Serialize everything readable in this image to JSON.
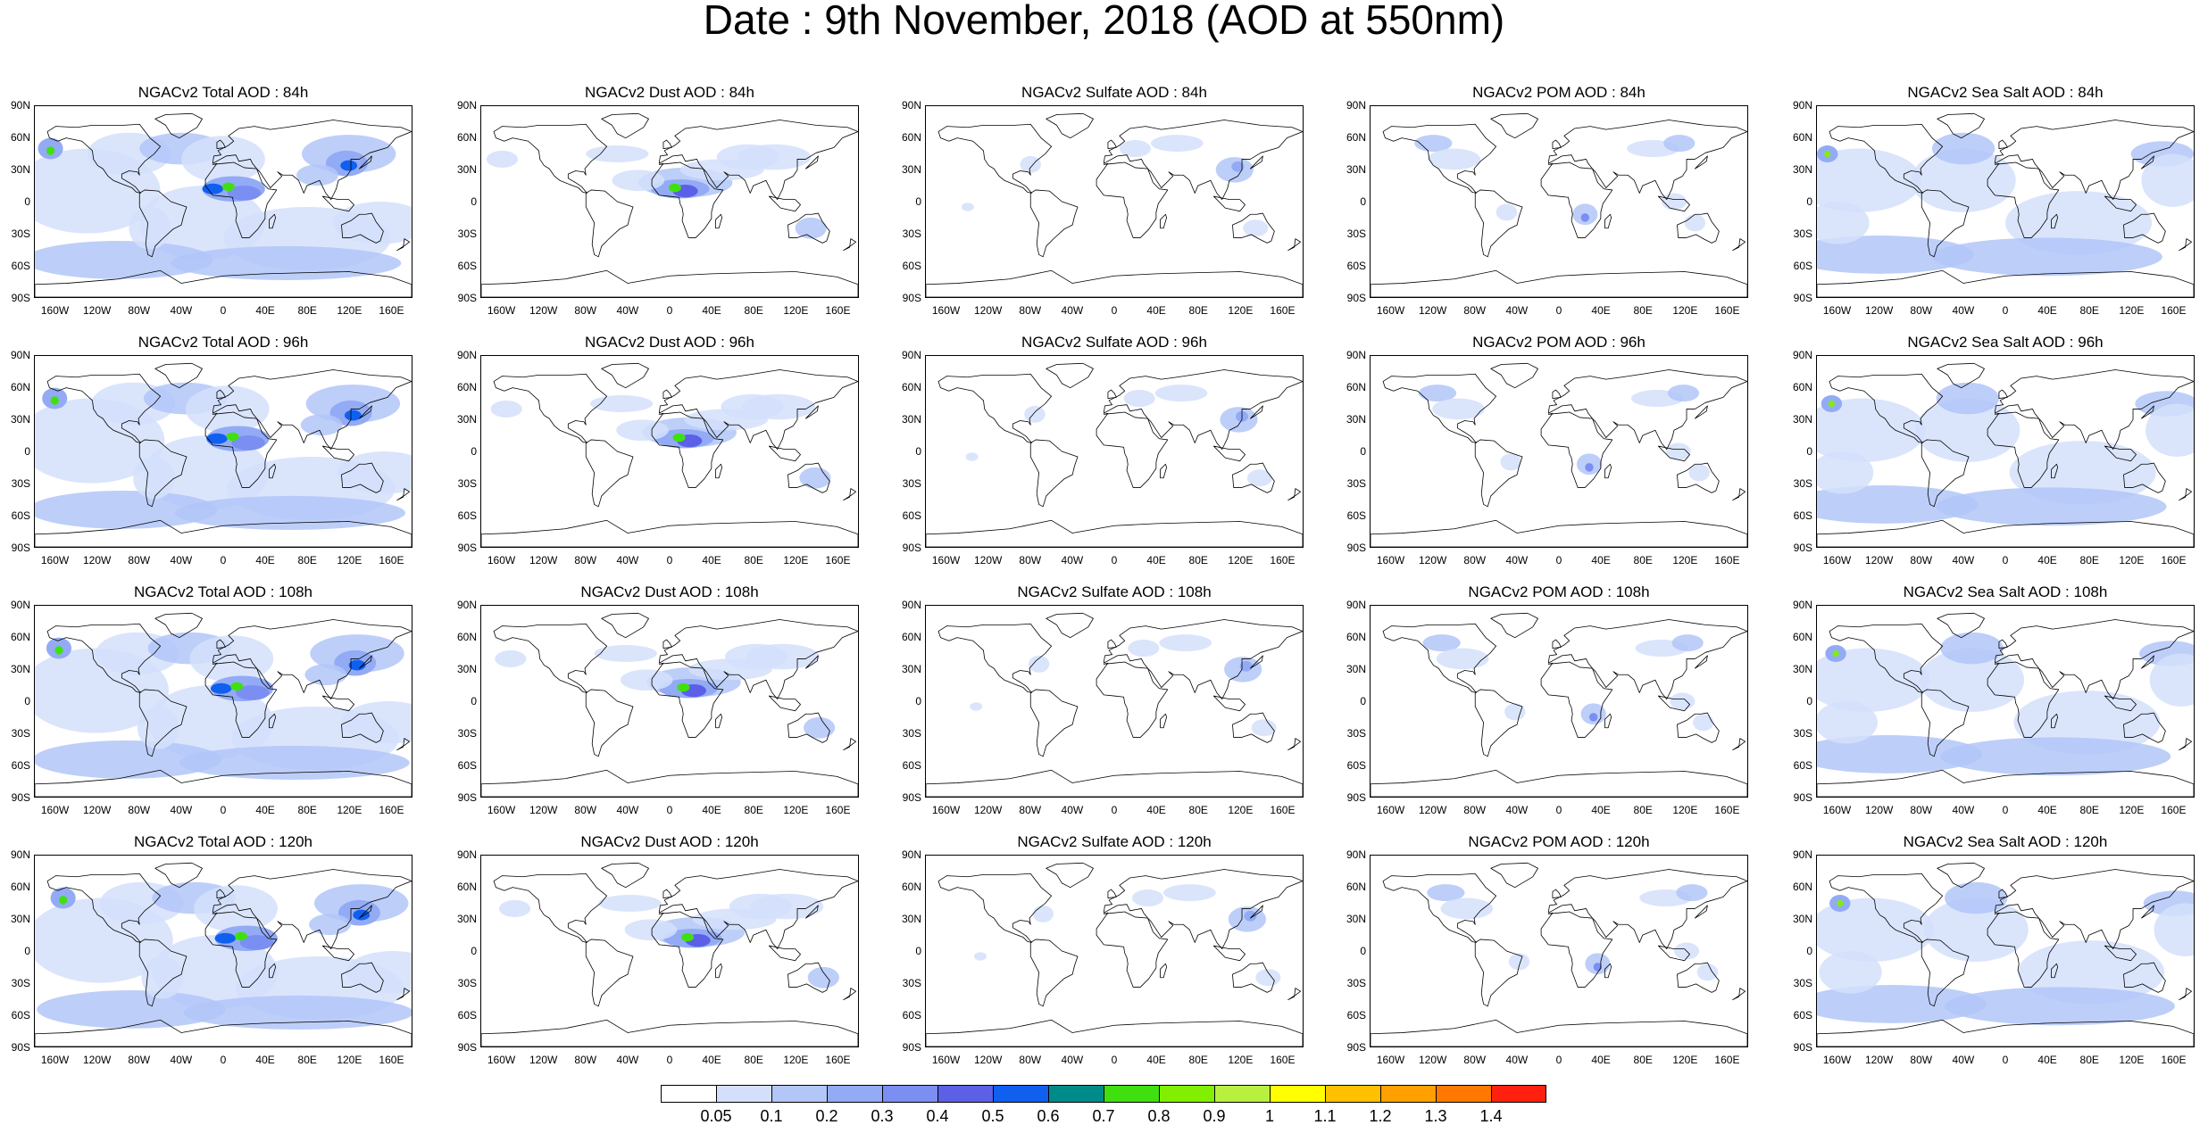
{
  "title": "Date : 9th November, 2018 (AOD at 550nm)",
  "rows": [
    {
      "panels": [
        {
          "title": "NGACv2 Total AOD : 84h",
          "species": "total"
        },
        {
          "title": "NGACv2 Dust AOD : 84h",
          "species": "dust"
        },
        {
          "title": "NGACv2 Sulfate AOD : 84h",
          "species": "sulfate"
        },
        {
          "title": "NGACv2 POM AOD : 84h",
          "species": "pom"
        },
        {
          "title": "NGACv2 Sea Salt AOD : 84h",
          "species": "seasalt"
        }
      ]
    },
    {
      "panels": [
        {
          "title": "NGACv2 Total AOD : 96h",
          "species": "total"
        },
        {
          "title": "NGACv2 Dust AOD : 96h",
          "species": "dust"
        },
        {
          "title": "NGACv2 Sulfate AOD : 96h",
          "species": "sulfate"
        },
        {
          "title": "NGACv2 POM AOD : 96h",
          "species": "pom"
        },
        {
          "title": "NGACv2 Sea Salt AOD : 96h",
          "species": "seasalt"
        }
      ]
    },
    {
      "panels": [
        {
          "title": "NGACv2 Total AOD : 108h",
          "species": "total"
        },
        {
          "title": "NGACv2 Dust AOD : 108h",
          "species": "dust"
        },
        {
          "title": "NGACv2 Sulfate AOD : 108h",
          "species": "sulfate"
        },
        {
          "title": "NGACv2 POM AOD : 108h",
          "species": "pom"
        },
        {
          "title": "NGACv2 Sea Salt AOD : 108h",
          "species": "seasalt"
        }
      ]
    },
    {
      "panels": [
        {
          "title": "NGACv2 Total AOD : 120h",
          "species": "total"
        },
        {
          "title": "NGACv2 Dust AOD : 120h",
          "species": "dust"
        },
        {
          "title": "NGACv2 Sulfate AOD : 120h",
          "species": "sulfate"
        },
        {
          "title": "NGACv2 POM AOD : 120h",
          "species": "pom"
        },
        {
          "title": "NGACv2 Sea Salt  AOD : 120h",
          "species": "seasalt"
        }
      ]
    }
  ],
  "lat_labels": [
    "90N",
    "60N",
    "30N",
    "0",
    "30S",
    "60S",
    "90S"
  ],
  "lon_labels": [
    "160W",
    "120W",
    "80W",
    "40W",
    "0",
    "40E",
    "80E",
    "120E",
    "160E"
  ],
  "colorbar": {
    "colors": [
      "#ffffff",
      "#d4e0fb",
      "#b2c6f8",
      "#93abf5",
      "#7b8ef2",
      "#5b60e7",
      "#1060f0",
      "#008b8b",
      "#40e010",
      "#80f000",
      "#b8f040",
      "#ffff00",
      "#ffc000",
      "#ffa000",
      "#ff7800",
      "#ff2010"
    ],
    "labels": [
      "0.05",
      "0.1",
      "0.2",
      "0.3",
      "0.4",
      "0.5",
      "0.6",
      "0.7",
      "0.8",
      "0.9",
      "1",
      "1.1",
      "1.2",
      "1.3",
      "1.4"
    ]
  }
}
